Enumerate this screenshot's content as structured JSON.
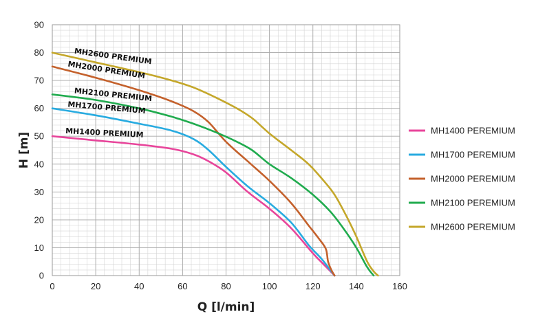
{
  "chart_data": {
    "type": "line",
    "xlabel": "Q [l/min]",
    "ylabel": "H [m]",
    "xlim": [
      0,
      160
    ],
    "ylim": [
      0,
      90
    ],
    "x_ticks": [
      "0",
      "20",
      "40",
      "60",
      "80",
      "100",
      "120",
      "140",
      "160"
    ],
    "y_ticks": [
      "0",
      "10",
      "20",
      "30",
      "40",
      "50",
      "60",
      "70",
      "80",
      "90"
    ],
    "grid": true,
    "minor_grid_step": {
      "x": 4,
      "y": 2
    },
    "legend_position": "right",
    "series": [
      {
        "name": "MH1400 PEREMIUM",
        "curve_label": "MH1400 PREMIUM",
        "color": "#e8459b",
        "points": [
          [
            0,
            50
          ],
          [
            20,
            48.5
          ],
          [
            40,
            47
          ],
          [
            55,
            45.5
          ],
          [
            65,
            43.5
          ],
          [
            72,
            41
          ],
          [
            80,
            37
          ],
          [
            90,
            30
          ],
          [
            100,
            24
          ],
          [
            110,
            17
          ],
          [
            120,
            8
          ],
          [
            125,
            4
          ],
          [
            130,
            0
          ]
        ]
      },
      {
        "name": "MH1700 PEREMIUM",
        "curve_label": "MH1700 PREMIUM",
        "color": "#28abe0",
        "points": [
          [
            0,
            60
          ],
          [
            20,
            57.5
          ],
          [
            40,
            54.5
          ],
          [
            55,
            52
          ],
          [
            65,
            49
          ],
          [
            72,
            45
          ],
          [
            80,
            39
          ],
          [
            90,
            32
          ],
          [
            100,
            26
          ],
          [
            110,
            19
          ],
          [
            118,
            11
          ],
          [
            124,
            6
          ],
          [
            128,
            2
          ],
          [
            130,
            0
          ]
        ]
      },
      {
        "name": "MH2000 PEREMIUM",
        "curve_label": "MH2000 PREMIUM",
        "color": "#c4612c",
        "points": [
          [
            0,
            75
          ],
          [
            20,
            71
          ],
          [
            40,
            66.5
          ],
          [
            55,
            62.5
          ],
          [
            65,
            59
          ],
          [
            72,
            55
          ],
          [
            80,
            48
          ],
          [
            90,
            41
          ],
          [
            100,
            34
          ],
          [
            110,
            26
          ],
          [
            118,
            18
          ],
          [
            123,
            13
          ],
          [
            126,
            9.5
          ],
          [
            127,
            5
          ],
          [
            128.5,
            2
          ],
          [
            130,
            0
          ]
        ]
      },
      {
        "name": "MH2100 PEREMIUM",
        "curve_label": "MH2100 PREMIUM",
        "color": "#20ab4e",
        "points": [
          [
            0,
            65
          ],
          [
            20,
            63
          ],
          [
            40,
            60
          ],
          [
            55,
            57
          ],
          [
            65,
            54.5
          ],
          [
            75,
            51.5
          ],
          [
            85,
            48
          ],
          [
            92,
            45
          ],
          [
            100,
            40
          ],
          [
            110,
            35
          ],
          [
            120,
            29
          ],
          [
            128,
            23
          ],
          [
            134,
            17
          ],
          [
            140,
            10
          ],
          [
            145,
            3
          ],
          [
            148,
            0
          ]
        ]
      },
      {
        "name": "MH2600 PEREMIUM",
        "curve_label": "MH2600 PREMIUM",
        "color": "#c4a72a",
        "points": [
          [
            0,
            80
          ],
          [
            20,
            76.5
          ],
          [
            40,
            73
          ],
          [
            55,
            70
          ],
          [
            65,
            67.5
          ],
          [
            75,
            64
          ],
          [
            85,
            60
          ],
          [
            92,
            56.5
          ],
          [
            100,
            51
          ],
          [
            110,
            45
          ],
          [
            118,
            40
          ],
          [
            125,
            34
          ],
          [
            130,
            29
          ],
          [
            135,
            22
          ],
          [
            140,
            14
          ],
          [
            145,
            5
          ],
          [
            148,
            1.5
          ],
          [
            150,
            0
          ]
        ]
      }
    ]
  }
}
